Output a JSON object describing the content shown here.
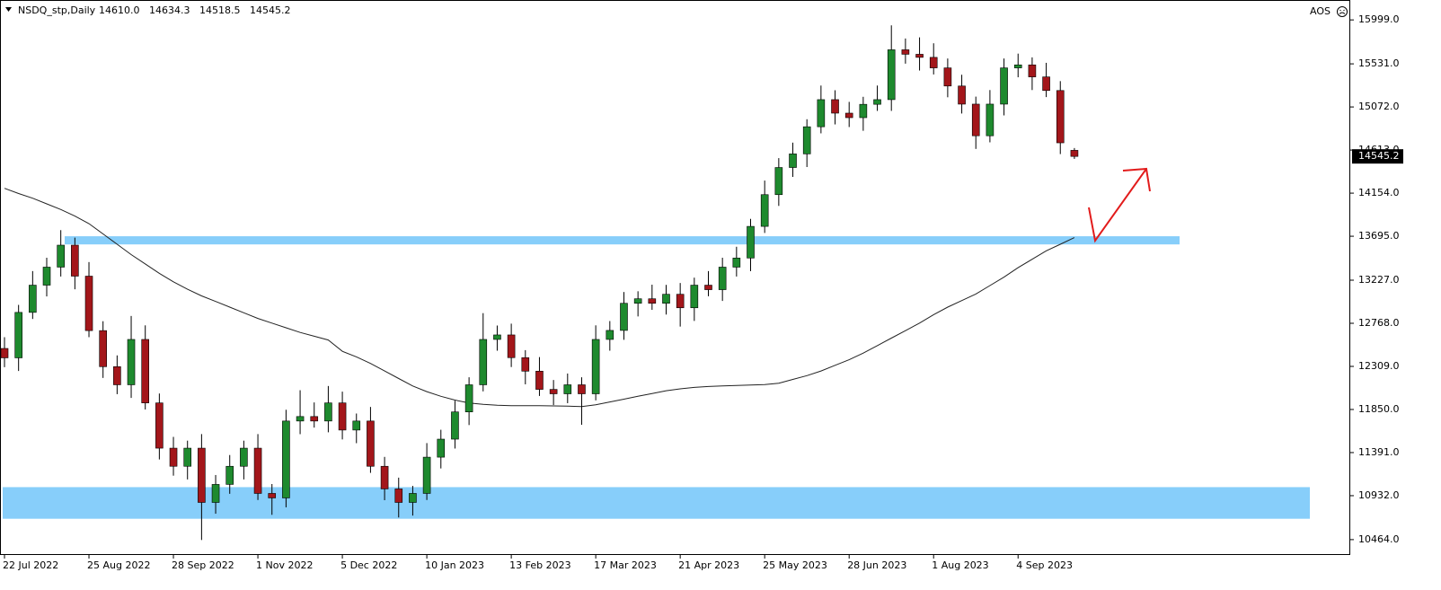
{
  "chart_data": {
    "type": "candlestick",
    "title": "NSDQ_stp,Daily",
    "header_ohlc": [
      {
        "value": 14610,
        "label": "14610.0"
      },
      {
        "value": 14634.3,
        "label": "14634.3"
      },
      {
        "value": 14518.5,
        "label": "14518.5"
      },
      {
        "value": 14545.2,
        "label": "14545.2"
      }
    ],
    "indicator_label": "AOS",
    "last_price": {
      "value": 14545.2,
      "label": "14545.2"
    },
    "categories": [
      "22 Jul 2022",
      null,
      null,
      null,
      null,
      null,
      "25 Aug 2022",
      null,
      null,
      null,
      null,
      null,
      "28 Sep 2022",
      null,
      null,
      null,
      null,
      null,
      "1 Nov 2022",
      null,
      null,
      null,
      null,
      null,
      "5 Dec 2022",
      null,
      null,
      null,
      null,
      null,
      "10 Jan 2023",
      null,
      null,
      null,
      null,
      null,
      "13 Feb 2023",
      null,
      null,
      null,
      null,
      null,
      "17 Mar 2023",
      null,
      null,
      null,
      null,
      null,
      "21 Apr 2023",
      null,
      null,
      null,
      null,
      null,
      "25 May 2023",
      null,
      null,
      null,
      null,
      null,
      "28 Jun 2023",
      null,
      null,
      null,
      null,
      null,
      "1 Aug 2023",
      null,
      null,
      null,
      null,
      null,
      "4 Sep 2023",
      null,
      null,
      null,
      null
    ],
    "open": [
      12500,
      12400,
      12884,
      13174,
      13366,
      13600,
      13270,
      12690,
      12306,
      12113,
      12596,
      11920,
      11438,
      11245,
      11438,
      10860,
      11052,
      11245,
      11438,
      10956,
      10908,
      11727,
      11775,
      11727,
      11920,
      11631,
      11727,
      11245,
      11004,
      10860,
      10956,
      11342,
      11534,
      11824,
      12113,
      12596,
      12644,
      12402,
      12258,
      12064,
      12017,
      12113,
      12017,
      12596,
      12692,
      12981,
      13029,
      12981,
      13077,
      12933,
      13174,
      13126,
      13366,
      13463,
      13800,
      14138,
      14427,
      14572,
      14861,
      15150,
      15006,
      14958,
      15100,
      15150,
      15681,
      15633,
      15600,
      15488,
      15295,
      15102,
      14765,
      15102,
      15488,
      15520,
      15392,
      15247,
      14610
    ],
    "high": [
      12620,
      12964,
      13324,
      13466,
      13760,
      13680,
      13420,
      12790,
      12426,
      12846,
      12746,
      12020,
      11558,
      11518,
      11588,
      11152,
      11365,
      11518,
      11588,
      11056,
      11847,
      12055,
      11925,
      12100,
      12040,
      11807,
      11877,
      11345,
      11124,
      11036,
      11492,
      11634,
      11944,
      12193,
      12876,
      12744,
      12764,
      12482,
      12408,
      12164,
      12233,
      12193,
      12746,
      12792,
      13101,
      13109,
      13179,
      13177,
      13197,
      13254,
      13324,
      13466,
      13583,
      13880,
      14288,
      14527,
      14692,
      14941,
      15300,
      15250,
      15126,
      15180,
      15300,
      15941,
      15801,
      15813,
      15750,
      15588,
      15415,
      15182,
      15252,
      15588,
      15640,
      15600,
      15542,
      15347,
      14634.3
    ],
    "low": [
      12300,
      12260,
      12814,
      13054,
      13266,
      13130,
      12620,
      12186,
      12013,
      11973,
      11850,
      11318,
      11145,
      11105,
      10460,
      10740,
      10952,
      11105,
      10886,
      10728,
      10808,
      11587,
      11657,
      11607,
      11531,
      11491,
      11175,
      10884,
      10700,
      10720,
      10886,
      11222,
      11434,
      11684,
      12043,
      12476,
      12302,
      12118,
      11994,
      11897,
      11917,
      11687,
      11947,
      12476,
      12592,
      12841,
      12911,
      12861,
      12733,
      12793,
      13056,
      13006,
      13266,
      13323,
      13730,
      14018,
      14327,
      14432,
      14791,
      14886,
      14858,
      14818,
      15030,
      15030,
      15533,
      15460,
      15418,
      15175,
      15002,
      14625,
      14695,
      14982,
      15388,
      15252,
      15177,
      14570,
      14518.5
    ],
    "close": [
      12400,
      12884,
      13174,
      13366,
      13600,
      13270,
      12690,
      12306,
      12113,
      12596,
      11920,
      11438,
      11245,
      11438,
      10860,
      11052,
      11245,
      11438,
      10956,
      10908,
      11727,
      11775,
      11727,
      11920,
      11631,
      11727,
      11245,
      11004,
      10860,
      10956,
      11342,
      11534,
      11824,
      12113,
      12596,
      12644,
      12402,
      12258,
      12064,
      12017,
      12113,
      12017,
      12596,
      12692,
      12981,
      13029,
      12981,
      13077,
      12933,
      13174,
      13126,
      13366,
      13463,
      13800,
      14138,
      14427,
      14572,
      14861,
      15150,
      15006,
      14958,
      15100,
      15150,
      15681,
      15633,
      15600,
      15488,
      15295,
      15102,
      14765,
      15102,
      15488,
      15520,
      15392,
      15247,
      14690,
      14545.2
    ],
    "up_color": "#1e8a2e",
    "down_color": "#a3161a",
    "moving_average": {
      "color": "#222222",
      "values": [
        14205,
        14150,
        14100,
        14040,
        13980,
        13910,
        13830,
        13720,
        13610,
        13500,
        13400,
        13300,
        13210,
        13130,
        13060,
        13000,
        12940,
        12880,
        12820,
        12770,
        12720,
        12670,
        12630,
        12590,
        12470,
        12410,
        12340,
        12260,
        12180,
        12100,
        12040,
        11990,
        11950,
        11920,
        11905,
        11895,
        11890,
        11890,
        11890,
        11888,
        11885,
        11880,
        11900,
        11930,
        11960,
        11990,
        12020,
        12050,
        12070,
        12085,
        12095,
        12100,
        12105,
        12110,
        12115,
        12130,
        12170,
        12210,
        12260,
        12320,
        12380,
        12450,
        12530,
        12610,
        12690,
        12770,
        12860,
        12940,
        13010,
        13080,
        13170,
        13260,
        13360,
        13450,
        13540,
        13610,
        13680
      ]
    },
    "zones": [
      {
        "from": 13608,
        "to": 13695,
        "color": "#87cefa"
      },
      {
        "from": 10686,
        "to": 11023,
        "color": "#87cefa"
      }
    ],
    "ylim": [
      10310,
      16211
    ],
    "yticks": [
      {
        "value": 10464,
        "label": "10464.0"
      },
      {
        "value": 10932,
        "label": "10932.0"
      },
      {
        "value": 11391,
        "label": "11391.0"
      },
      {
        "value": 11850,
        "label": "11850.0"
      },
      {
        "value": 12309,
        "label": "12309.0"
      },
      {
        "value": 12768,
        "label": "12768.0"
      },
      {
        "value": 13227,
        "label": "13227.0"
      },
      {
        "value": 13695,
        "label": "13695.0"
      },
      {
        "value": 14154,
        "label": "14154.0"
      },
      {
        "value": 14613,
        "label": "14613.0"
      },
      {
        "value": 15072,
        "label": "15072.0"
      },
      {
        "value": 15531,
        "label": "15531.0"
      },
      {
        "value": 15999,
        "label": "15999.0"
      }
    ]
  }
}
